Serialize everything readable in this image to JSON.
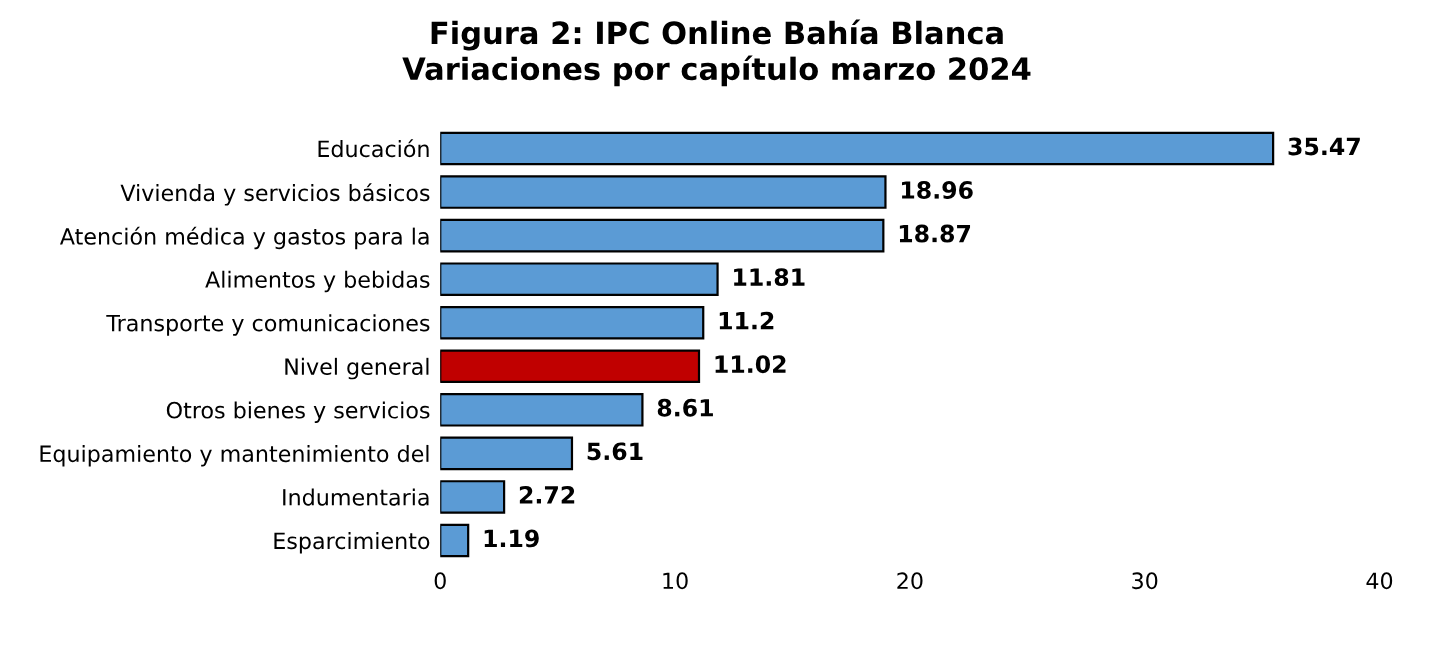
{
  "chart_data": {
    "type": "bar",
    "orientation": "horizontal",
    "title": "Figura 2: IPC Online Bahía Blanca\nVariaciones por capítulo marzo 2024",
    "categories": [
      "Educación",
      "Vivienda y servicios básicos",
      "Atención médica y gastos para la",
      "Alimentos y bebidas",
      "Transporte y comunicaciones",
      "Nivel general",
      "Otros bienes y servicios",
      "Equipamiento y mantenimiento del",
      "Indumentaria",
      "Esparcimiento"
    ],
    "values": [
      35.47,
      18.96,
      18.87,
      11.81,
      11.2,
      11.02,
      8.61,
      5.61,
      2.72,
      1.19
    ],
    "colors": [
      "#5b9bd5",
      "#5b9bd5",
      "#5b9bd5",
      "#5b9bd5",
      "#5b9bd5",
      "#c00000",
      "#5b9bd5",
      "#5b9bd5",
      "#5b9bd5",
      "#5b9bd5"
    ],
    "xlim": [
      0,
      40
    ],
    "xticks": [
      0,
      10,
      20,
      30,
      40
    ],
    "data_labels": true,
    "grid": false,
    "legend": false
  }
}
